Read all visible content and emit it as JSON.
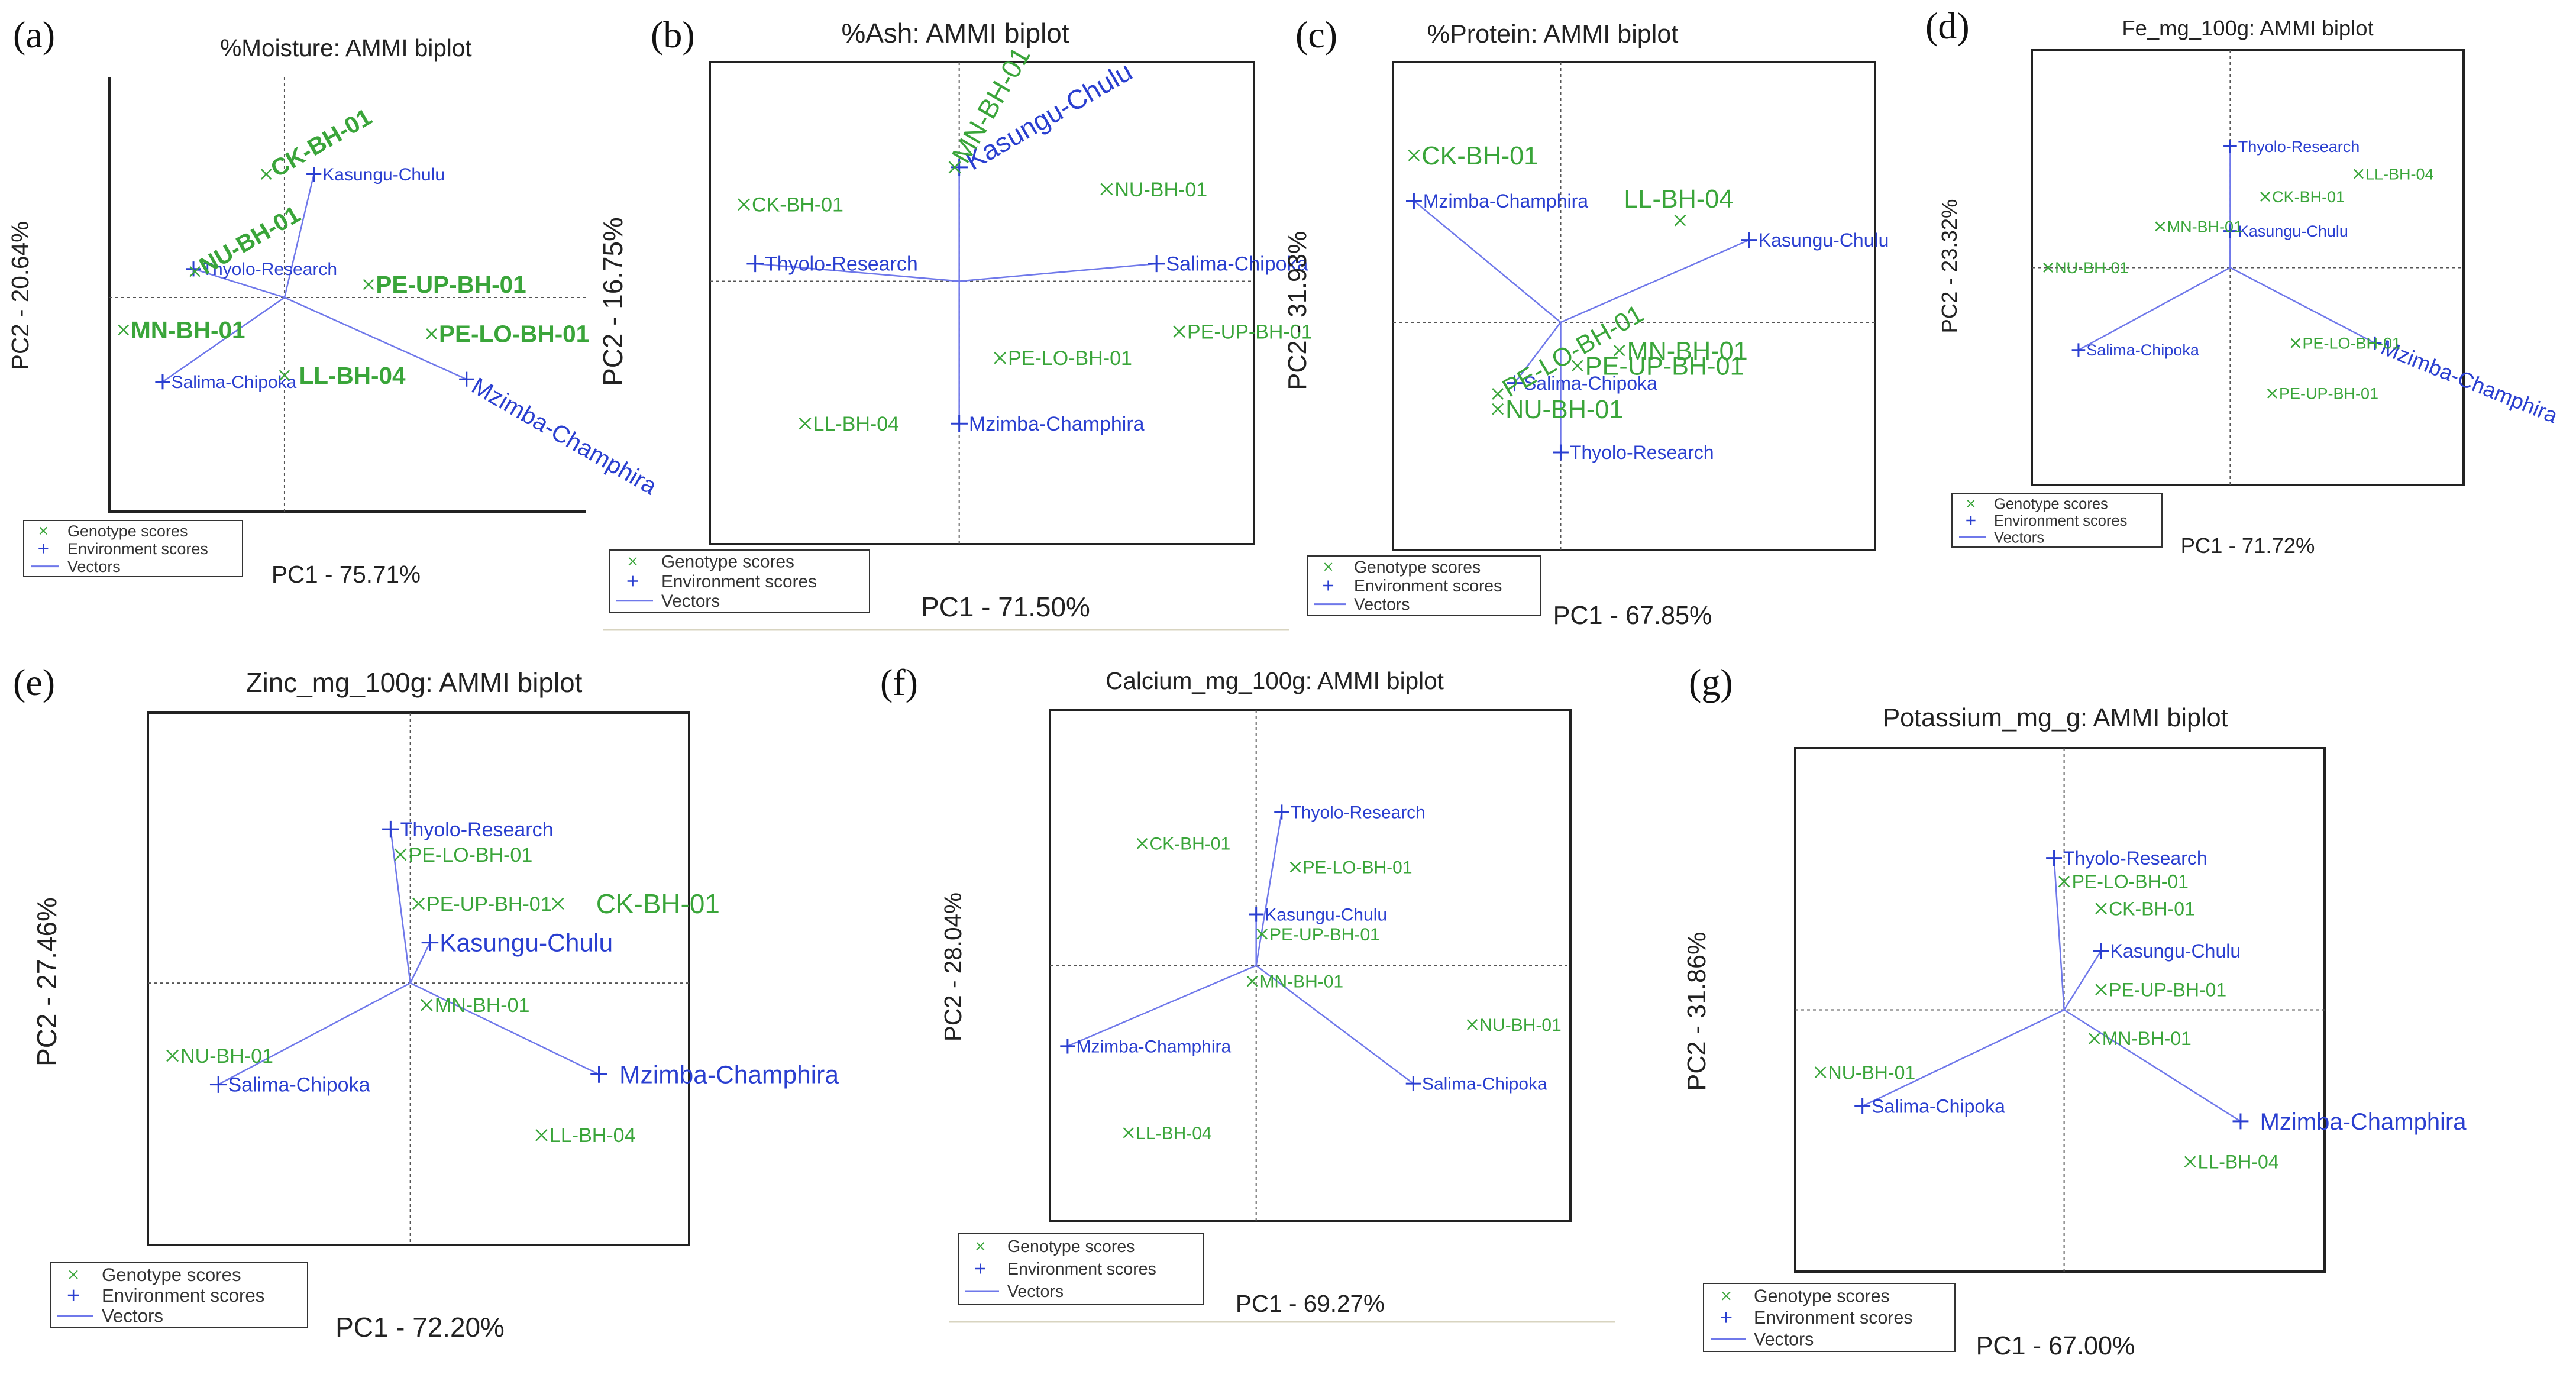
{
  "figure": {
    "legend": {
      "genotype": "Genotype scores",
      "environment": "Environment scores",
      "vectors": "Vectors"
    },
    "colors": {
      "genotype": "#3aa53a",
      "environment": "#2a3fd0",
      "vector": "#6f78ea",
      "frame": "#222222",
      "text": "#222222"
    }
  },
  "chart_data": [
    {
      "type": "scatter",
      "letter": "(a)",
      "title": "%Moisture: AMMI biplot",
      "xlabel": "PC1 - 75.71%",
      "ylabel": "PC2 - 20.64%",
      "xlim": [
        -1.25,
        2.15
      ],
      "ylim": [
        -1.65,
        1.7
      ],
      "box": "partial",
      "genotypes": [
        {
          "name": "CK-BH-01",
          "x": -0.13,
          "y": 0.95,
          "label_size": "large",
          "label_angle": -30
        },
        {
          "name": "NU-BH-01",
          "x": -0.64,
          "y": 0.2,
          "label_size": "large",
          "label_angle": -30
        },
        {
          "name": "PE-UP-BH-01",
          "x": 0.6,
          "y": 0.1,
          "label_size": "large"
        },
        {
          "name": "MN-BH-01",
          "x": -1.15,
          "y": -0.25,
          "label_size": "large"
        },
        {
          "name": "PE-LO-BH-01",
          "x": 1.05,
          "y": -0.28,
          "label_size": "large"
        },
        {
          "name": "LL-BH-04",
          "x": 0.0,
          "y": -0.6,
          "label_size": "large",
          "label_at": "right"
        }
      ],
      "environments": [
        {
          "name": "Kasungu-Chulu",
          "x": 0.21,
          "y": 0.95,
          "label_size": "small"
        },
        {
          "name": "Thyolo-Research",
          "x": -0.65,
          "y": 0.22,
          "label_size": "small"
        },
        {
          "name": "Salima-Chipoka",
          "x": -0.87,
          "y": -0.65,
          "label_size": "small"
        },
        {
          "name": "Mzimba-Champhira",
          "x": 1.3,
          "y": -0.63,
          "label_size": "large",
          "label_angle": 30
        }
      ]
    },
    {
      "type": "scatter",
      "letter": "(b)",
      "title": "%Ash: AMMI biplot",
      "xlabel": "PC1 - 71.50%",
      "ylabel": "PC2 - 16.75%",
      "xlim": [
        -1.1,
        1.3
      ],
      "ylim": [
        -1.2,
        1.0
      ],
      "box": "full",
      "genotypes": [
        {
          "name": "MN-BH-01",
          "x": -0.02,
          "y": 0.52,
          "label_size": "large",
          "label_angle": -60
        },
        {
          "name": "CK-BH-01",
          "x": -0.95,
          "y": 0.35,
          "label_size": "small"
        },
        {
          "name": "NU-BH-01",
          "x": 0.65,
          "y": 0.42,
          "label_size": "small"
        },
        {
          "name": "PE-UP-BH-01",
          "x": 0.97,
          "y": -0.23,
          "label_size": "small"
        },
        {
          "name": "PE-LO-BH-01",
          "x": 0.18,
          "y": -0.35,
          "label_size": "small"
        },
        {
          "name": "LL-BH-04",
          "x": -0.68,
          "y": -0.65,
          "label_size": "small"
        }
      ],
      "environments": [
        {
          "name": "Kasungu-Chulu",
          "x": 0.0,
          "y": 0.52,
          "label_size": "large",
          "label_angle": -30
        },
        {
          "name": "Thyolo-Research",
          "x": -0.9,
          "y": 0.08,
          "label_size": "small"
        },
        {
          "name": "Salima-Chipoka",
          "x": 0.87,
          "y": 0.08,
          "label_size": "small"
        },
        {
          "name": "Mzimba-Champhira",
          "x": 0.0,
          "y": -0.65,
          "label_size": "small"
        }
      ]
    },
    {
      "type": "scatter",
      "letter": "(c)",
      "title": "%Protein: AMMI biplot",
      "xlabel": "PC1 - 67.85%",
      "ylabel": "PC2 - 31.93%",
      "xlim": [
        -0.8,
        1.5
      ],
      "ylim": [
        -1.05,
        1.2
      ],
      "box": "full",
      "genotypes": [
        {
          "name": "CK-BH-01",
          "x": -0.7,
          "y": 0.77,
          "label_size": "large"
        },
        {
          "name": "LL-BH-04",
          "x": 0.57,
          "y": 0.47,
          "label_size": "large",
          "label_at": "above"
        },
        {
          "name": "PE-LO-BH-01",
          "x": -0.3,
          "y": -0.33,
          "label_size": "large",
          "label_angle": -30
        },
        {
          "name": "MN-BH-01",
          "x": 0.28,
          "y": -0.13,
          "label_size": "large"
        },
        {
          "name": "PE-UP-BH-01",
          "x": 0.08,
          "y": -0.2,
          "label_size": "large"
        },
        {
          "name": "NU-BH-01",
          "x": -0.3,
          "y": -0.4,
          "label_size": "large"
        }
      ],
      "environments": [
        {
          "name": "Mzimba-Champhira",
          "x": -0.7,
          "y": 0.56,
          "label_size": "small"
        },
        {
          "name": "Kasungu-Chulu",
          "x": 0.9,
          "y": 0.38,
          "label_size": "small"
        },
        {
          "name": "Salima-Chipoka",
          "x": -0.22,
          "y": -0.28,
          "label_size": "small"
        },
        {
          "name": "Thyolo-Research",
          "x": 0.0,
          "y": -0.6,
          "label_size": "small"
        }
      ]
    },
    {
      "type": "scatter",
      "letter": "(d)",
      "title": "Fe_mg_100g: AMMI biplot",
      "xlabel": "PC1 - 71.72%",
      "ylabel": "PC2 - 23.32%",
      "xlim": [
        -0.85,
        1.0
      ],
      "ylim": [
        -0.95,
        0.95
      ],
      "box": "full",
      "genotypes": [
        {
          "name": "LL-BH-04",
          "x": 0.55,
          "y": 0.41,
          "label_size": "small"
        },
        {
          "name": "CK-BH-01",
          "x": 0.15,
          "y": 0.31,
          "label_size": "small"
        },
        {
          "name": "MN-BH-01",
          "x": -0.3,
          "y": 0.18,
          "label_size": "small"
        },
        {
          "name": "NU-BH-01",
          "x": -0.78,
          "y": 0.0,
          "label_size": "small"
        },
        {
          "name": "PE-LO-BH-01",
          "x": 0.28,
          "y": -0.33,
          "label_size": "small"
        },
        {
          "name": "PE-UP-BH-01",
          "x": 0.18,
          "y": -0.55,
          "label_size": "small"
        }
      ],
      "environments": [
        {
          "name": "Thyolo-Research",
          "x": 0.0,
          "y": 0.53,
          "label_size": "small"
        },
        {
          "name": "Kasungu-Chulu",
          "x": 0.0,
          "y": 0.16,
          "label_size": "small"
        },
        {
          "name": "Salima-Chipoka",
          "x": -0.65,
          "y": -0.36,
          "label_size": "small"
        },
        {
          "name": "Mzimba-Champhira",
          "x": 0.62,
          "y": -0.33,
          "label_size": "large",
          "label_angle": 22
        }
      ]
    },
    {
      "type": "scatter",
      "letter": "(e)",
      "title": "Zinc_mg_100g: AMMI biplot",
      "xlabel": "PC1 - 72.20%",
      "ylabel": "PC2 - 27.46%",
      "xlim": [
        -1.6,
        1.7
      ],
      "ylim": [
        -1.55,
        1.6
      ],
      "box": "full",
      "genotypes": [
        {
          "name": "PE-LO-BH-01",
          "x": -0.06,
          "y": 0.76,
          "label_size": "small"
        },
        {
          "name": "PE-UP-BH-01",
          "x": 0.05,
          "y": 0.47,
          "label_size": "small"
        },
        {
          "name": "CK-BH-01",
          "x": 0.9,
          "y": 0.47,
          "label_size": "large",
          "label_at": "right-far"
        },
        {
          "name": "MN-BH-01",
          "x": 0.1,
          "y": -0.13,
          "label_size": "small"
        },
        {
          "name": "NU-BH-01",
          "x": -1.45,
          "y": -0.43,
          "label_size": "small"
        },
        {
          "name": "LL-BH-04",
          "x": 0.8,
          "y": -0.9,
          "label_size": "small"
        }
      ],
      "environments": [
        {
          "name": "Thyolo-Research",
          "x": -0.12,
          "y": 0.91,
          "label_size": "small"
        },
        {
          "name": "Kasungu-Chulu",
          "x": 0.12,
          "y": 0.24,
          "label_size": "medium"
        },
        {
          "name": "Salima-Chipoka",
          "x": -1.17,
          "y": -0.6,
          "label_size": "small"
        },
        {
          "name": "Mzimba-Champhira",
          "x": 1.15,
          "y": -0.54,
          "label_size": "medium",
          "label_at": "right-far"
        }
      ]
    },
    {
      "type": "scatter",
      "letter": "(f)",
      "title": "Calcium_mg_100g: AMMI biplot",
      "xlabel": "PC1 - 69.27%",
      "ylabel": "PC2 - 28.04%",
      "xlim": [
        -1.05,
        1.6
      ],
      "ylim": [
        -1.3,
        1.3
      ],
      "box": "full",
      "genotypes": [
        {
          "name": "CK-BH-01",
          "x": -0.58,
          "y": 0.62,
          "label_size": "small"
        },
        {
          "name": "PE-LO-BH-01",
          "x": 0.2,
          "y": 0.5,
          "label_size": "small"
        },
        {
          "name": "PE-UP-BH-01",
          "x": 0.03,
          "y": 0.16,
          "label_size": "small"
        },
        {
          "name": "MN-BH-01",
          "x": -0.02,
          "y": -0.08,
          "label_size": "small"
        },
        {
          "name": "NU-BH-01",
          "x": 1.1,
          "y": -0.3,
          "label_size": "small"
        },
        {
          "name": "LL-BH-04",
          "x": -0.65,
          "y": -0.85,
          "label_size": "small"
        }
      ],
      "environments": [
        {
          "name": "Thyolo-Research",
          "x": 0.13,
          "y": 0.78,
          "label_size": "small"
        },
        {
          "name": "Kasungu-Chulu",
          "x": 0.0,
          "y": 0.26,
          "label_size": "small"
        },
        {
          "name": "Mzimba-Champhira",
          "x": -0.96,
          "y": -0.41,
          "label_size": "small"
        },
        {
          "name": "Salima-Chipoka",
          "x": 0.8,
          "y": -0.6,
          "label_size": "small"
        }
      ]
    },
    {
      "type": "scatter",
      "letter": "(g)",
      "title": "Potassium_mg_g: AMMI biplot",
      "xlabel": "PC1 - 67.00%",
      "ylabel": "PC2 - 31.86%",
      "xlim": [
        -1.6,
        1.55
      ],
      "ylim": [
        -1.55,
        1.55
      ],
      "box": "full",
      "genotypes": [
        {
          "name": "PE-LO-BH-01",
          "x": 0.0,
          "y": 0.76,
          "label_size": "small"
        },
        {
          "name": "CK-BH-01",
          "x": 0.22,
          "y": 0.6,
          "label_size": "small"
        },
        {
          "name": "PE-UP-BH-01",
          "x": 0.22,
          "y": 0.12,
          "label_size": "small"
        },
        {
          "name": "MN-BH-01",
          "x": 0.18,
          "y": -0.17,
          "label_size": "small"
        },
        {
          "name": "NU-BH-01",
          "x": -1.45,
          "y": -0.37,
          "label_size": "small"
        },
        {
          "name": "LL-BH-04",
          "x": 0.75,
          "y": -0.9,
          "label_size": "small"
        }
      ],
      "environments": [
        {
          "name": "Thyolo-Research",
          "x": -0.06,
          "y": 0.9,
          "label_size": "small"
        },
        {
          "name": "Kasungu-Chulu",
          "x": 0.22,
          "y": 0.35,
          "label_size": "small"
        },
        {
          "name": "Salima-Chipoka",
          "x": -1.2,
          "y": -0.57,
          "label_size": "small"
        },
        {
          "name": "Mzimba-Champhira",
          "x": 1.05,
          "y": -0.66,
          "label_size": "medium",
          "label_at": "right-far"
        }
      ]
    }
  ]
}
